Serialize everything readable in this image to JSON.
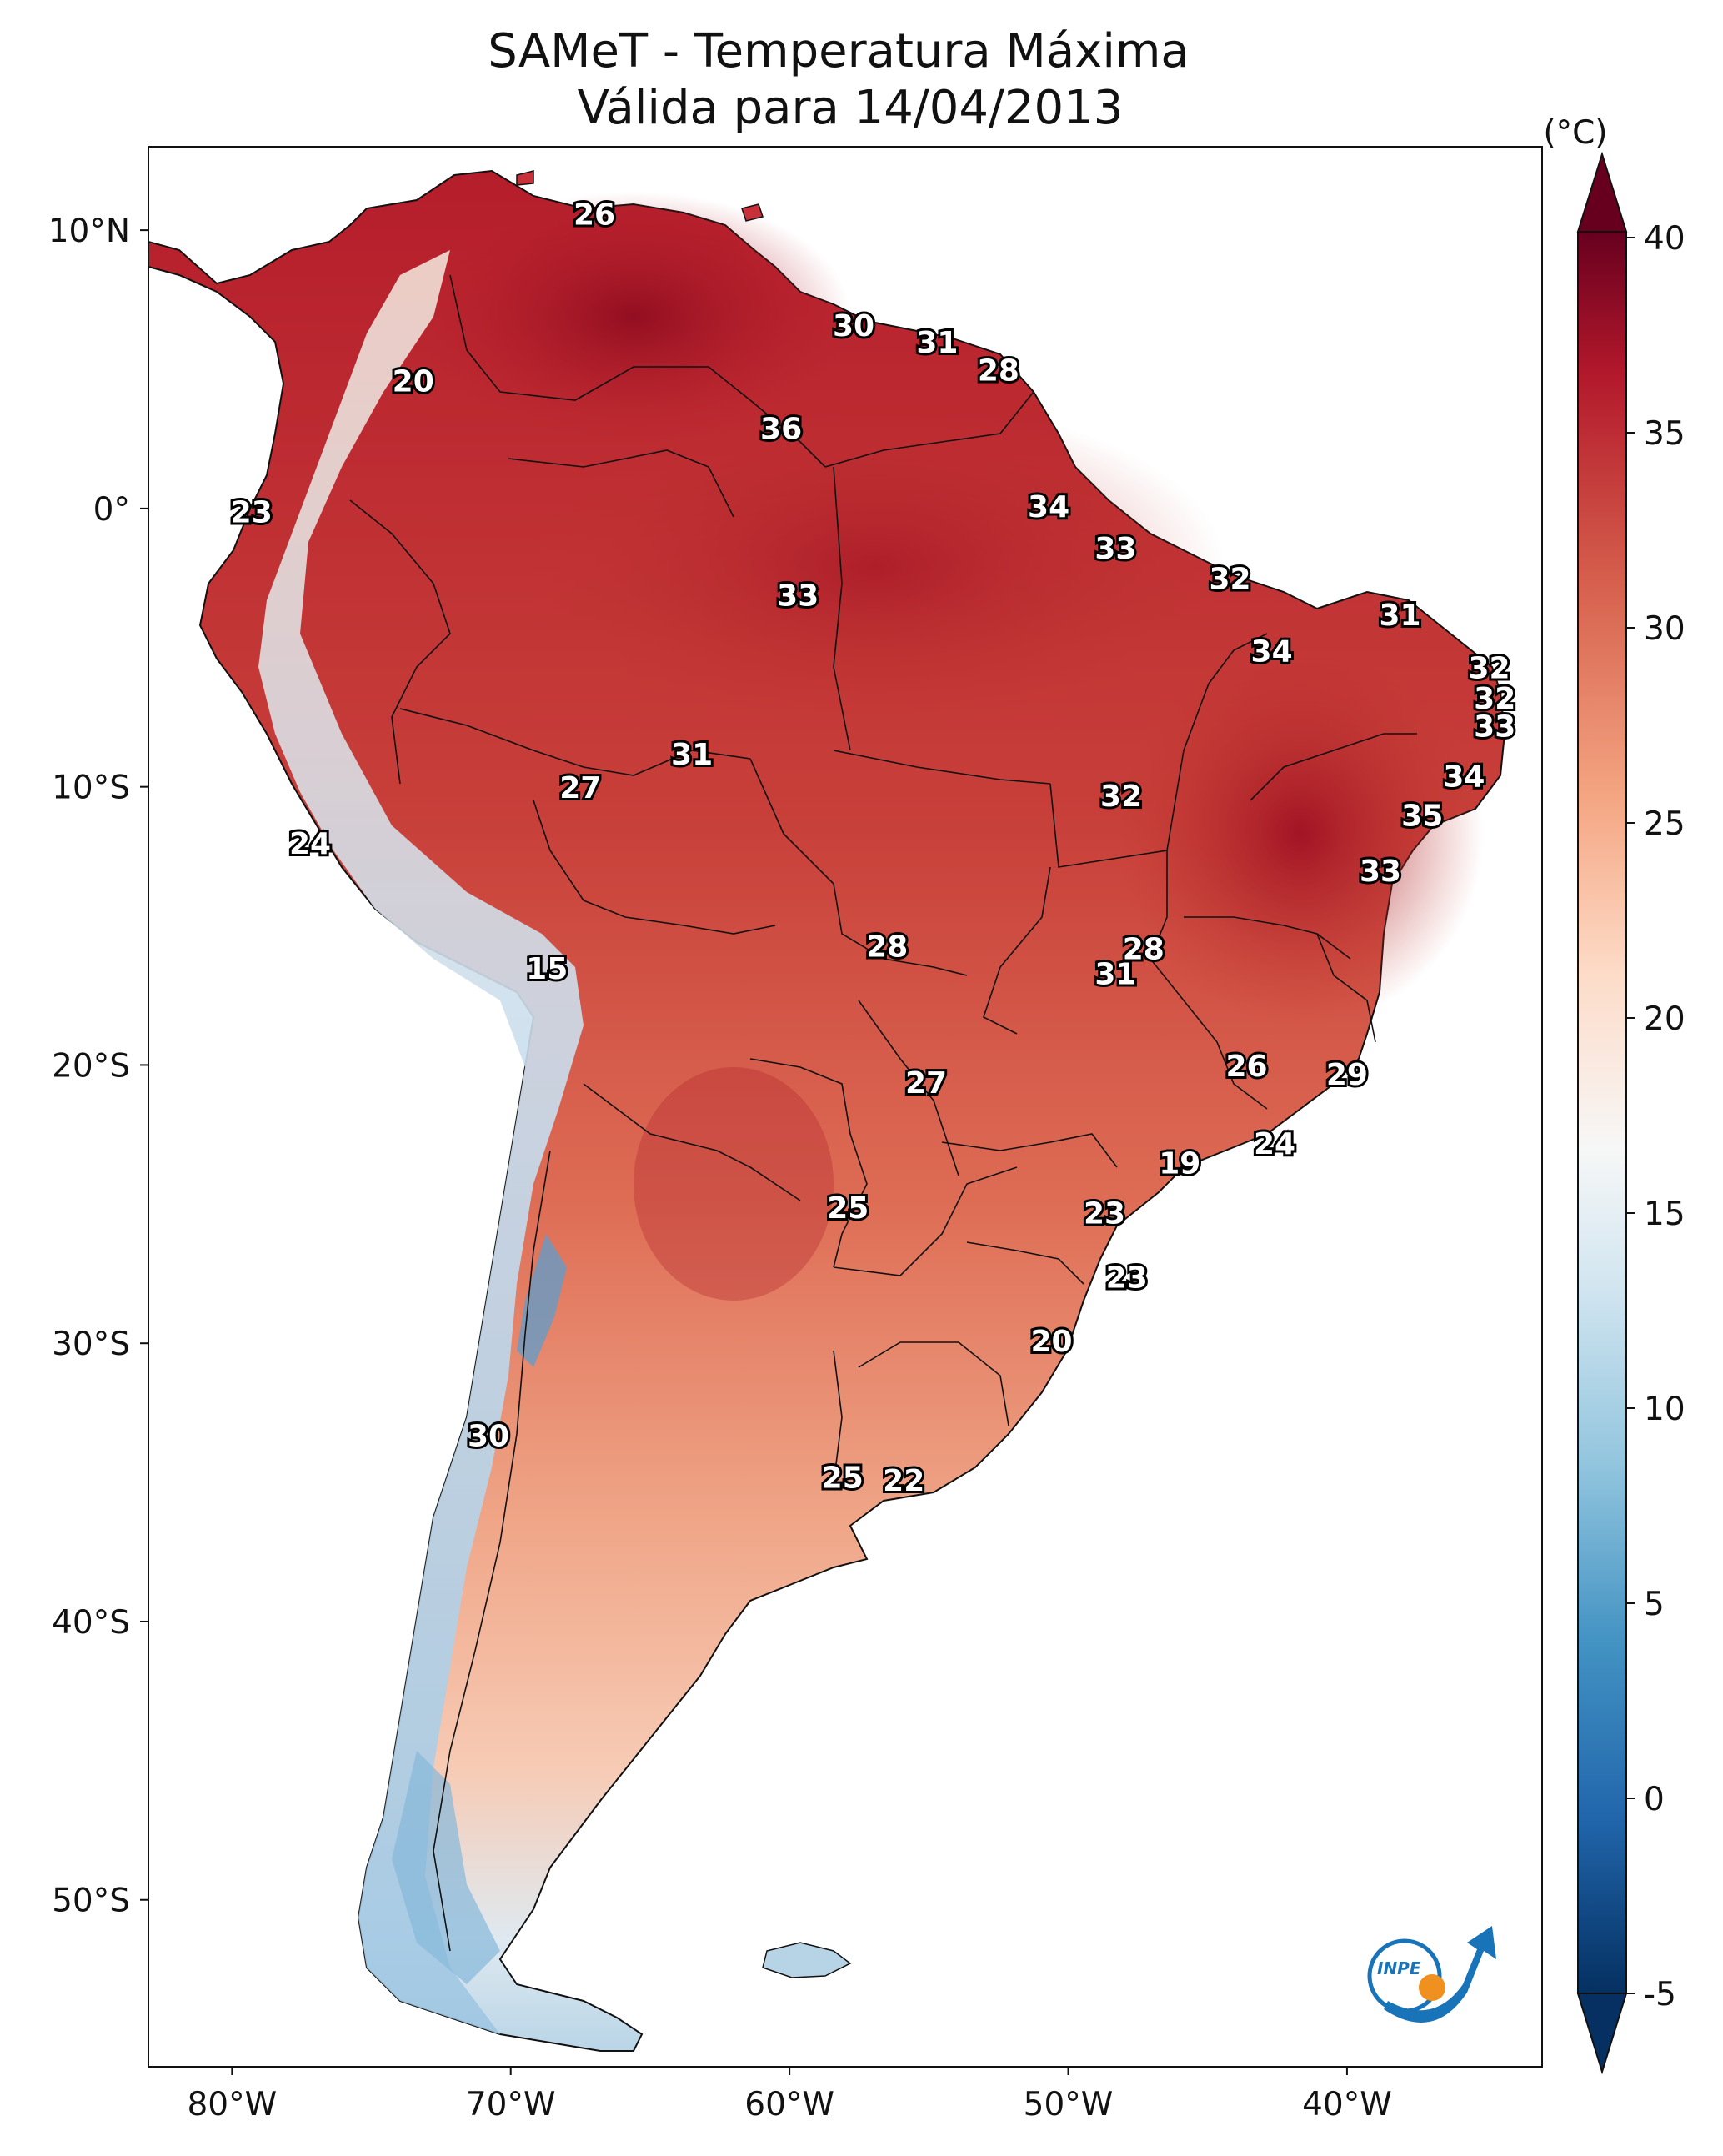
{
  "title_line1": "SAMeT - Temperatura Máxima",
  "title_line2": "Válida para 14/04/2013",
  "colorbar": {
    "unit": "(°C)",
    "min": -5,
    "max": 40,
    "ticks": [
      "40",
      "35",
      "30",
      "25",
      "20",
      "15",
      "10",
      "5",
      "0",
      "-5"
    ],
    "colors": [
      "#053061",
      "#2166ac",
      "#4393c3",
      "#92c5de",
      "#d1e5f0",
      "#f7f7f7",
      "#fddbc7",
      "#f4a582",
      "#d6604d",
      "#b2182b",
      "#67001f"
    ]
  },
  "axes": {
    "lon_ticks": [
      "80°W",
      "70°W",
      "60°W",
      "50°W",
      "40°W"
    ],
    "lat_ticks": [
      "10°N",
      "0°",
      "10°S",
      "20°S",
      "30°S",
      "40°S",
      "50°S"
    ]
  },
  "chart_data": {
    "type": "heatmap",
    "title": "SAMeT - Temperatura Máxima Válida para 14/04/2013",
    "variable": "Temperatura Máxima",
    "units": "°C",
    "range": [
      -5,
      40
    ],
    "lon_range": [
      -83,
      -33
    ],
    "lat_range": [
      -56,
      13
    ],
    "labels": [
      {
        "value": "26",
        "lon": -67,
        "lat": 10.5
      },
      {
        "value": "30",
        "lon": -57.7,
        "lat": 6.5
      },
      {
        "value": "31",
        "lon": -54.7,
        "lat": 5.9
      },
      {
        "value": "28",
        "lon": -52.5,
        "lat": 4.9
      },
      {
        "value": "20",
        "lon": -73.5,
        "lat": 4.5
      },
      {
        "value": "36",
        "lon": -60.3,
        "lat": 2.8
      },
      {
        "value": "23",
        "lon": -79.3,
        "lat": -0.2
      },
      {
        "value": "34",
        "lon": -50.7,
        "lat": -0.0
      },
      {
        "value": "33",
        "lon": -48.3,
        "lat": -1.5
      },
      {
        "value": "32",
        "lon": -44.2,
        "lat": -2.6
      },
      {
        "value": "33",
        "lon": -59.7,
        "lat": -3.2
      },
      {
        "value": "31",
        "lon": -38.1,
        "lat": -3.9
      },
      {
        "value": "34",
        "lon": -42.7,
        "lat": -5.2
      },
      {
        "value": "32",
        "lon": -34.9,
        "lat": -5.8
      },
      {
        "value": "32",
        "lon": -34.7,
        "lat": -6.9
      },
      {
        "value": "33",
        "lon": -34.7,
        "lat": -7.9
      },
      {
        "value": "31",
        "lon": -63.5,
        "lat": -8.9
      },
      {
        "value": "34",
        "lon": -35.8,
        "lat": -9.7
      },
      {
        "value": "27",
        "lon": -67.5,
        "lat": -10.1
      },
      {
        "value": "32",
        "lon": -48.1,
        "lat": -10.4
      },
      {
        "value": "35",
        "lon": -37.3,
        "lat": -11.1
      },
      {
        "value": "24",
        "lon": -77.2,
        "lat": -12.1
      },
      {
        "value": "33",
        "lon": -38.8,
        "lat": -13.1
      },
      {
        "value": "28",
        "lon": -56.5,
        "lat": -15.8
      },
      {
        "value": "28",
        "lon": -47.3,
        "lat": -15.9
      },
      {
        "value": "31",
        "lon": -48.3,
        "lat": -16.8
      },
      {
        "value": "15",
        "lon": -68.7,
        "lat": -16.6
      },
      {
        "value": "26",
        "lon": -43.6,
        "lat": -20.1
      },
      {
        "value": "29",
        "lon": -40.0,
        "lat": -20.4
      },
      {
        "value": "27",
        "lon": -55.1,
        "lat": -20.7
      },
      {
        "value": "24",
        "lon": -42.6,
        "lat": -22.9
      },
      {
        "value": "19",
        "lon": -46.0,
        "lat": -23.6
      },
      {
        "value": "25",
        "lon": -57.9,
        "lat": -25.2
      },
      {
        "value": "23",
        "lon": -48.7,
        "lat": -25.4
      },
      {
        "value": "23",
        "lon": -47.9,
        "lat": -27.7
      },
      {
        "value": "20",
        "lon": -50.6,
        "lat": -30.0
      },
      {
        "value": "30",
        "lon": -70.8,
        "lat": -33.4
      },
      {
        "value": "25",
        "lon": -58.1,
        "lat": -34.9
      },
      {
        "value": "22",
        "lon": -55.9,
        "lat": -35.0
      }
    ]
  }
}
